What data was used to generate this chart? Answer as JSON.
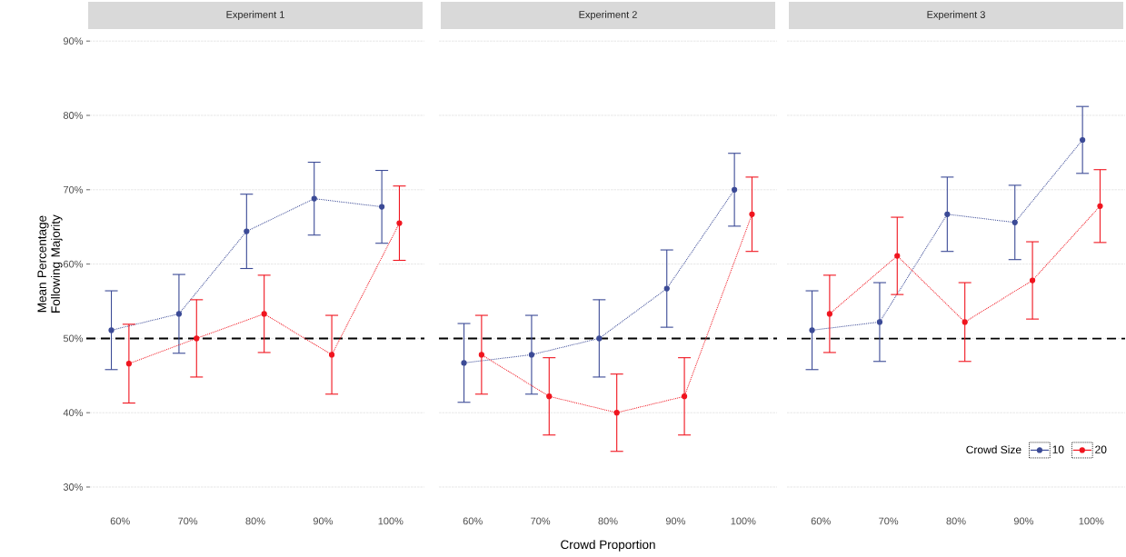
{
  "chart_data": [
    {
      "type": "line",
      "title": "Experiment 1",
      "ylabel": "Mean Percentage Following Majority",
      "categories": [
        "60%",
        "70%",
        "80%",
        "90%",
        "100%"
      ],
      "ylim": [
        30,
        90
      ],
      "yticks": [
        {
          "value": 30,
          "label": "30%"
        },
        {
          "value": 40,
          "label": "40%"
        },
        {
          "value": 50,
          "label": "50%"
        },
        {
          "value": 60,
          "label": "60%"
        },
        {
          "value": 70,
          "label": "70%"
        },
        {
          "value": 80,
          "label": "80%"
        },
        {
          "value": 90,
          "label": "90%"
        }
      ],
      "grid": "y",
      "marker": "circle",
      "line_style": "dotted",
      "ref_lines": [
        {
          "axis": "y",
          "value": 50,
          "color": "#000000",
          "line_style": "dashed"
        }
      ],
      "series": [
        {
          "color": "#3b4a96",
          "values": [
            51.1,
            53.3,
            64.4,
            68.8,
            67.7
          ],
          "errors": [
            5.3,
            5.3,
            5.0,
            4.9,
            4.9
          ]
        },
        {
          "color": "#f0141e",
          "values": [
            46.6,
            50.0,
            53.3,
            47.8,
            65.5
          ],
          "errors": [
            5.3,
            5.2,
            5.2,
            5.3,
            5.0
          ]
        }
      ]
    },
    {
      "type": "line",
      "title": "Experiment 2",
      "xlabel": "Crowd Proportion",
      "categories": [
        "60%",
        "70%",
        "80%",
        "90%",
        "100%"
      ],
      "ylim": [
        30,
        90
      ],
      "yticks": [
        30,
        40,
        50,
        60,
        70,
        80,
        90
      ],
      "tick_labels": "x",
      "grid": "y",
      "marker": "circle",
      "line_style": "dotted",
      "ref_lines": [
        {
          "axis": "y",
          "value": 50,
          "color": "#000000",
          "line_style": "dashed"
        }
      ],
      "series": [
        {
          "color": "#3b4a96",
          "values": [
            46.7,
            47.8,
            50.0,
            56.7,
            70.0
          ],
          "errors": [
            5.3,
            5.3,
            5.2,
            5.2,
            4.9
          ]
        },
        {
          "color": "#f0141e",
          "values": [
            47.8,
            42.2,
            40.0,
            42.2,
            66.7
          ],
          "errors": [
            5.3,
            5.2,
            5.2,
            5.2,
            5.0
          ]
        }
      ]
    },
    {
      "type": "line",
      "title": "Experiment 3",
      "legend_title": "Crowd Size",
      "categories": [
        "60%",
        "70%",
        "80%",
        "90%",
        "100%"
      ],
      "ylim": [
        30,
        90
      ],
      "yticks": [
        30,
        40,
        50,
        60,
        70,
        80,
        90
      ],
      "tick_labels": "x",
      "grid": "y",
      "legend": "bottom right",
      "marker": "circle",
      "line_style": "dotted",
      "ref_lines": [
        {
          "axis": "y",
          "value": 50,
          "color": "#000000",
          "line_style": "dashed"
        }
      ],
      "series": [
        {
          "name": "10",
          "color": "#3b4a96",
          "values": [
            51.1,
            52.2,
            66.7,
            65.6,
            76.7
          ],
          "errors": [
            5.3,
            5.3,
            5.0,
            5.0,
            4.5
          ]
        },
        {
          "name": "20",
          "color": "#f0141e",
          "values": [
            53.3,
            61.1,
            52.2,
            57.8,
            67.8
          ],
          "errors": [
            5.2,
            5.2,
            5.3,
            5.2,
            4.9
          ]
        }
      ]
    }
  ]
}
